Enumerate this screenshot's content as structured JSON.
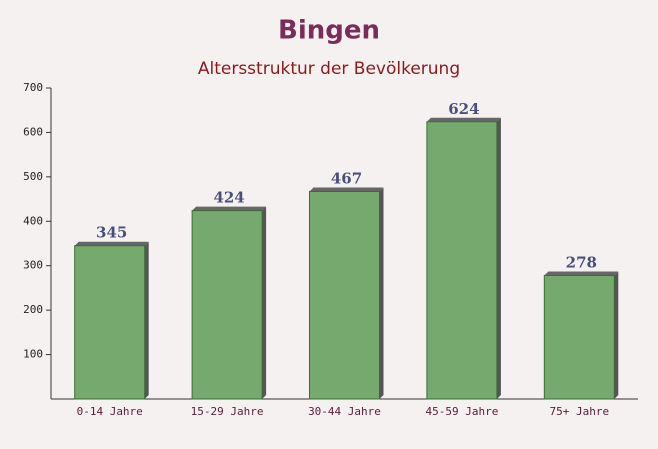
{
  "chart_data": {
    "type": "bar",
    "title": "Bingen",
    "subtitle": "Altersstruktur der Bevölkerung",
    "categories": [
      "0-14 Jahre",
      "15-29 Jahre",
      "30-44 Jahre",
      "45-59 Jahre",
      "75+ Jahre"
    ],
    "values": [
      345,
      424,
      467,
      624,
      278
    ],
    "color": "#6aa363",
    "ylim": [
      0,
      700
    ],
    "yticks": [
      100,
      200,
      300,
      400,
      500,
      600,
      700
    ],
    "grid": false
  }
}
